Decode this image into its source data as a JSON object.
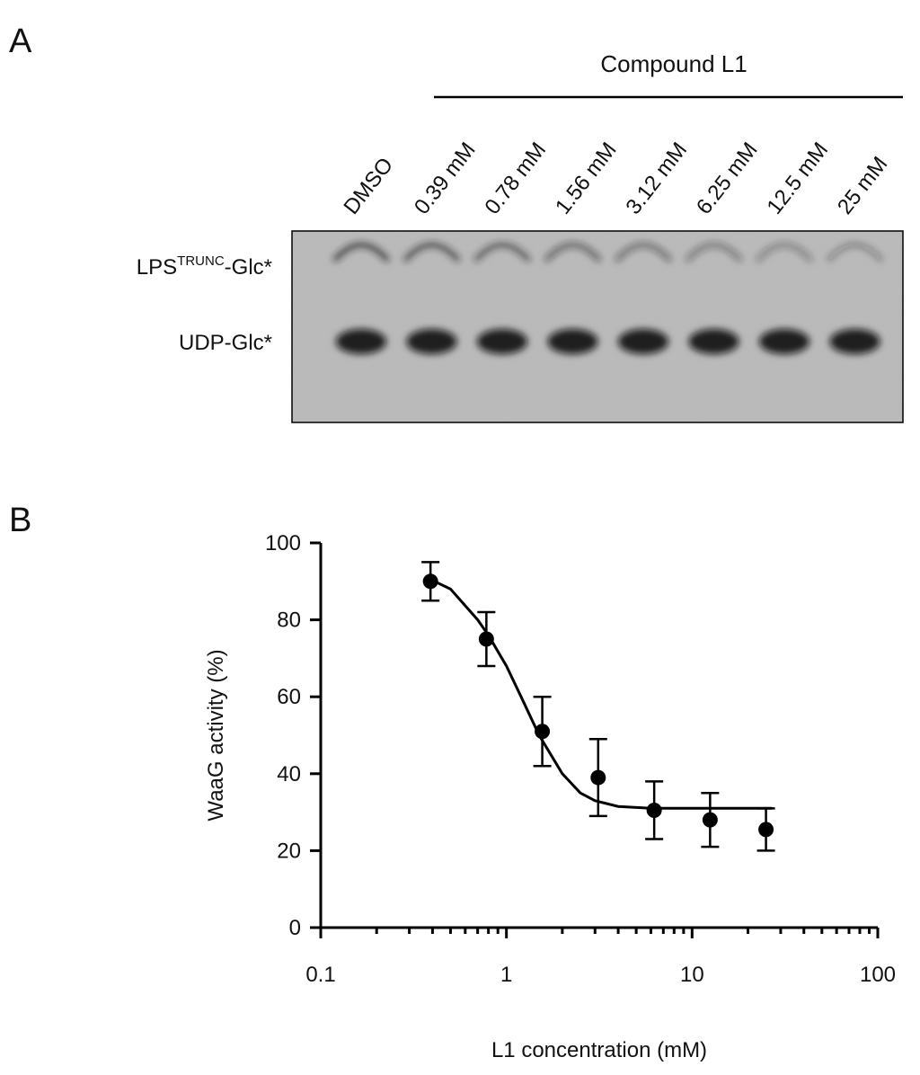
{
  "panel_a": {
    "label": "A",
    "group_label": "Compound L1",
    "lanes": [
      "DMSO",
      "0.39 mM",
      "0.78 mM",
      "1.56 mM",
      "3.12 mM",
      "6.25 mM",
      "12.5 mM",
      "25 mM"
    ],
    "band_labels": [
      [
        "LPS",
        "TRUNC",
        "-Glc*"
      ],
      [
        "UDP-Glc*"
      ]
    ]
  },
  "chart_data": {
    "type": "scatter",
    "panel_label": "B",
    "x_label": "L1 concentration (mM)",
    "y_label": "WaaG activity (%)",
    "x": [
      0.39,
      0.78,
      1.56,
      3.12,
      6.25,
      12.5,
      25
    ],
    "values": [
      90,
      75,
      51,
      39,
      30.5,
      28,
      25.5
    ],
    "errors": [
      5,
      7,
      9,
      10,
      7.5,
      7,
      5.5
    ],
    "fit": {
      "x": [
        0.39,
        0.5,
        0.7,
        0.8,
        1.0,
        1.2,
        1.5,
        2.0,
        2.5,
        3.0,
        4,
        6,
        10,
        27
      ],
      "values": [
        90.5,
        88,
        80,
        76,
        68,
        60,
        50,
        40,
        35,
        33,
        31.5,
        31,
        31,
        31
      ]
    },
    "color": "#000000",
    "xlog": true,
    "xlim": [
      0.1,
      100
    ],
    "xticks": [
      0.1,
      1,
      10,
      100
    ],
    "xminorticks": [
      0.2,
      0.3,
      0.4,
      0.5,
      0.6,
      0.7,
      0.8,
      0.9,
      2,
      3,
      4,
      5,
      6,
      7,
      8,
      9,
      20,
      30,
      40,
      50,
      60,
      70,
      80,
      90
    ],
    "ylim": [
      0,
      100
    ],
    "yticks": [
      0,
      20,
      40,
      60,
      80,
      100
    ]
  }
}
